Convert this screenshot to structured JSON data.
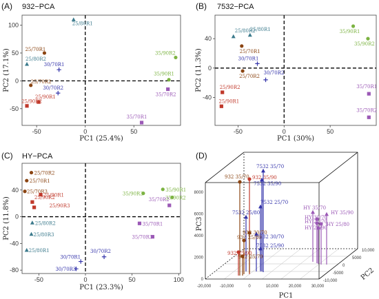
{
  "colors": {
    "c2580": "#3b7a8c",
    "c2570": "#8b4513",
    "c3070": "#3333aa",
    "c2590": "#c0392b",
    "c3590": "#7cb342",
    "c3570": "#9b59b6"
  },
  "chart_data": [
    {
      "panel": "(A)",
      "type": "scatter",
      "title": "932−PCA",
      "xlabel": "PC1 (25.4%)",
      "ylabel": "PC2 (17.1%)",
      "xlim": [
        -65,
        98
      ],
      "ylim": [
        -80,
        118
      ],
      "xticks": [
        -50,
        0,
        50
      ],
      "yticks": [
        -50,
        0,
        50,
        100
      ],
      "points": [
        {
          "label": "25/80R1",
          "x": -12,
          "y": 110,
          "g": "c2580",
          "m": "tri",
          "dx": -2,
          "dy": 8
        },
        {
          "label": "25/70R1",
          "x": -42,
          "y": 50,
          "g": "c2570",
          "m": "dot",
          "dx": -28,
          "dy": -3
        },
        {
          "label": "25/80R2",
          "x": -60,
          "y": 30,
          "g": "c2580",
          "m": "tri",
          "dx": -2,
          "dy": -5
        },
        {
          "label": "30/70R1",
          "x": -27,
          "y": 20,
          "g": "c3070",
          "m": "plus",
          "dx": -22,
          "dy": -5
        },
        {
          "label": "25/70R2",
          "x": -56,
          "y": -8,
          "g": "c2570",
          "m": "dot",
          "dx": 0,
          "dy": -3
        },
        {
          "label": "30/70R2",
          "x": -28,
          "y": -22,
          "g": "c3070",
          "m": "plus",
          "dx": -22,
          "dy": -5
        },
        {
          "label": "25/90R2",
          "x": -60,
          "y": -45,
          "g": "c2590",
          "m": "sq",
          "dx": -8,
          "dy": -4
        },
        {
          "label": "25/90R1",
          "x": -48,
          "y": -38,
          "g": "c2590",
          "m": "sq",
          "dx": -5,
          "dy": -5
        },
        {
          "label": "35/90R2",
          "x": 93,
          "y": 42,
          "g": "c3590",
          "m": "dot",
          "dx": -30,
          "dy": -4
        },
        {
          "label": "35/90R1",
          "x": 86,
          "y": 2,
          "g": "c3590",
          "m": "dot",
          "dx": -22,
          "dy": -6
        },
        {
          "label": "35/70R2",
          "x": 85,
          "y": -15,
          "g": "c3570",
          "m": "sq",
          "dx": -18,
          "dy": 10
        },
        {
          "label": "35/70R1",
          "x": 58,
          "y": -75,
          "g": "c3570",
          "m": "sq",
          "dx": -22,
          "dy": -6
        }
      ]
    },
    {
      "panel": "(B)",
      "type": "scatter",
      "title": "7532−PCA",
      "xlabel": "PC1 (30%)",
      "ylabel": "PC2 (11.3%)",
      "xlim": [
        -75,
        100
      ],
      "ylim": [
        -78,
        72
      ],
      "xticks": [
        -50,
        0,
        50
      ],
      "yticks": [
        -40,
        0,
        40
      ],
      "points": [
        {
          "label": "25/80R2",
          "x": -55,
          "y": 43,
          "g": "c2580",
          "m": "tri",
          "dx": 2,
          "dy": -6
        },
        {
          "label": "25/80R1",
          "x": -37,
          "y": 45,
          "g": "c2580",
          "m": "tri",
          "dx": 0,
          "dy": -6
        },
        {
          "label": "25/70R1",
          "x": -46,
          "y": 30,
          "g": "c2570",
          "m": "dot",
          "dx": -3,
          "dy": 10
        },
        {
          "label": "35/90R1",
          "x": 75,
          "y": 57,
          "g": "c3590",
          "m": "dot",
          "dx": -20,
          "dy": 10
        },
        {
          "label": "35/90R2",
          "x": 91,
          "y": 40,
          "g": "c3590",
          "m": "dot",
          "dx": -20,
          "dy": 10
        },
        {
          "label": "30/70R1",
          "x": -29,
          "y": 6,
          "g": "c3070",
          "m": "plus",
          "dx": -28,
          "dy": -5
        },
        {
          "label": "25/70R2",
          "x": -45,
          "y": -4,
          "g": "c2570",
          "m": "dot",
          "dx": -5,
          "dy": 10
        },
        {
          "label": "30/70R2",
          "x": -20,
          "y": -16,
          "g": "c3070",
          "m": "plus",
          "dx": -3,
          "dy": -8
        },
        {
          "label": "25/90R2",
          "x": -67,
          "y": -33,
          "g": "c2590",
          "m": "sq",
          "dx": -4,
          "dy": -5
        },
        {
          "label": "25/90R1",
          "x": -68,
          "y": -52,
          "g": "c2590",
          "m": "sq",
          "dx": -4,
          "dy": -5
        },
        {
          "label": "35/70R1",
          "x": 92,
          "y": -35,
          "g": "c3570",
          "m": "sq",
          "dx": -18,
          "dy": -8
        },
        {
          "label": "35/70R2",
          "x": 92,
          "y": -67,
          "g": "c3570",
          "m": "sq",
          "dx": -18,
          "dy": -8
        }
      ]
    },
    {
      "panel": "(C)",
      "type": "scatter",
      "title": "HY−PCA",
      "xlabel": "PC1 (23.3%)",
      "ylabel": "PC2 (11.8%)",
      "xlim": [
        -68,
        102
      ],
      "ylim": [
        -85,
        80
      ],
      "xticks": [
        -50,
        0,
        50,
        100
      ],
      "yticks": [
        -80,
        -40,
        0,
        40
      ],
      "points": [
        {
          "label": "25/70R2",
          "x": -58,
          "y": 66,
          "g": "c2570",
          "m": "dot",
          "dx": 4,
          "dy": 3
        },
        {
          "label": "25/70R1",
          "x": -63,
          "y": 54,
          "g": "c2570",
          "m": "dot",
          "dx": 4,
          "dy": 3
        },
        {
          "label": "25/70R3",
          "x": -65,
          "y": 38,
          "g": "c2570",
          "m": "dot",
          "dx": 3,
          "dy": 3
        },
        {
          "label": "25/90R1",
          "x": -48,
          "y": 33,
          "g": "c2590",
          "m": "sq",
          "dx": 4,
          "dy": 3
        },
        {
          "label": "25/90R2",
          "x": -57,
          "y": 22,
          "g": "c2590",
          "m": "sq",
          "dx": 3,
          "dy": -4
        },
        {
          "label": "25/90R3",
          "x": -55,
          "y": 14,
          "g": "c2590",
          "m": "sq",
          "dx": 22,
          "dy": 0
        },
        {
          "label": "25/80R2",
          "x": -57,
          "y": -9,
          "g": "c2580",
          "m": "tri",
          "dx": 4,
          "dy": 3
        },
        {
          "label": "25/80R3",
          "x": -58,
          "y": -26,
          "g": "c2580",
          "m": "tri",
          "dx": 3,
          "dy": 3
        },
        {
          "label": "25/80R1",
          "x": -63,
          "y": -50,
          "g": "c2580",
          "m": "tri",
          "dx": 3,
          "dy": 3
        },
        {
          "label": "35/90R3",
          "x": 62,
          "y": 35,
          "g": "c3590",
          "m": "dot",
          "dx": -30,
          "dy": 3
        },
        {
          "label": "35/90R1",
          "x": 83,
          "y": 41,
          "g": "c3590",
          "m": "dot",
          "dx": 4,
          "dy": 3
        },
        {
          "label": "35/90R2",
          "x": 93,
          "y": 29,
          "g": "c3590",
          "m": "dot",
          "dx": -10,
          "dy": 3
        },
        {
          "label": "35/70R2",
          "x": 90,
          "y": 17,
          "g": "c3570",
          "m": "sq",
          "dx": -30,
          "dy": -6
        },
        {
          "label": "35/70R1",
          "x": 58,
          "y": -10,
          "g": "c3570",
          "m": "sq",
          "dx": 4,
          "dy": 3
        },
        {
          "label": "35/70R3",
          "x": 72,
          "y": -30,
          "g": "c3570",
          "m": "sq",
          "dx": -30,
          "dy": 3
        },
        {
          "label": "30/70R2",
          "x": 20,
          "y": -60,
          "g": "c3070",
          "m": "plus",
          "dx": -20,
          "dy": -6
        },
        {
          "label": "30/70R1",
          "x": -5,
          "y": -67,
          "g": "c3070",
          "m": "plus",
          "dx": -30,
          "dy": -4
        },
        {
          "label": "30/70R3",
          "x": -10,
          "y": -78,
          "g": "c3070",
          "m": "plus",
          "dx": -30,
          "dy": 3
        }
      ]
    },
    {
      "panel": "(D)",
      "type": "scatter3d",
      "xlabel": "PC1",
      "ylabel": "PC2",
      "zlabel": "PC3",
      "xticks": [
        "-20,000",
        "-10,000",
        "0",
        "10,000",
        "20,000",
        "30,000"
      ],
      "yticks": [
        "-10,000",
        "-5000",
        "0",
        "5000",
        "10,000"
      ],
      "zticks": [
        "8000",
        "6000",
        "4000",
        "2000",
        "0"
      ],
      "labels": [
        "932_35/70",
        "7532_35/70",
        "7532_35/90",
        "932_35/90",
        "7532_25/70",
        "7532_25/80",
        "932_30/70",
        "7532_30/70",
        "932_25/80",
        "932_25/90",
        "7532_25/90",
        "932_25/70",
        "HY_35/70",
        "HY_35/90",
        "HY_30/70",
        "HY_25/70",
        "HY_25/80",
        "HY_25/90"
      ]
    }
  ]
}
